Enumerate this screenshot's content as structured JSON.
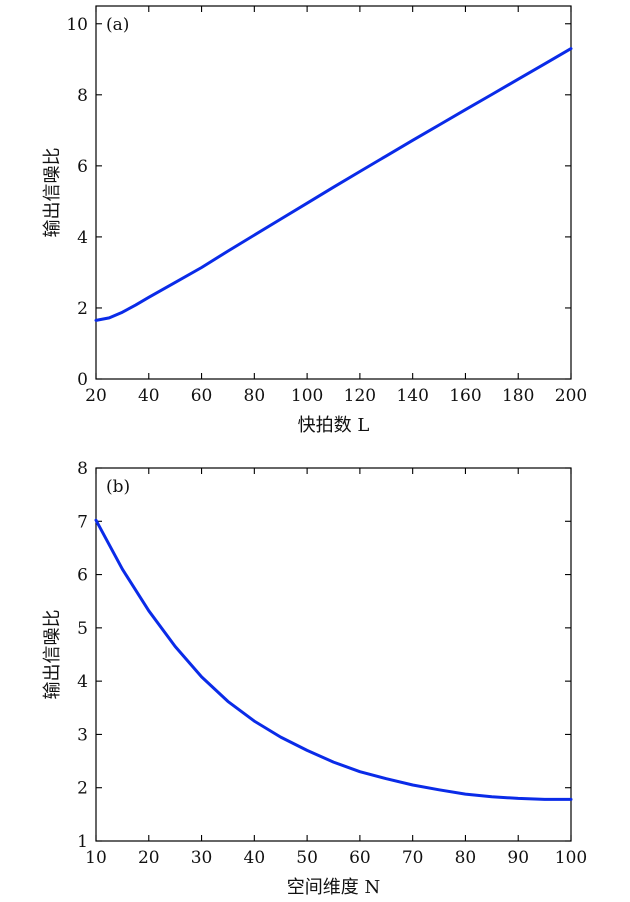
{
  "chart_data": [
    {
      "type": "line",
      "panel_label": "(a)",
      "xlabel": "快拍数 L",
      "ylabel": "输出信噪比",
      "xlim": [
        20,
        200
      ],
      "ylim": [
        0,
        10.5
      ],
      "xticks": [
        20,
        40,
        60,
        80,
        100,
        120,
        140,
        160,
        180,
        200
      ],
      "yticks": [
        0,
        2,
        4,
        6,
        8,
        10
      ],
      "grid": false,
      "color": "#0a2be8",
      "x": [
        20,
        25,
        30,
        35,
        40,
        50,
        60,
        70,
        80,
        90,
        100,
        110,
        120,
        130,
        140,
        150,
        160,
        170,
        180,
        190,
        200
      ],
      "y": [
        1.65,
        1.72,
        1.88,
        2.08,
        2.3,
        2.72,
        3.14,
        3.6,
        4.05,
        4.5,
        4.95,
        5.4,
        5.84,
        6.28,
        6.72,
        7.15,
        7.58,
        8.01,
        8.44,
        8.87,
        9.3
      ]
    },
    {
      "type": "line",
      "panel_label": "(b)",
      "xlabel": "空间维度 N",
      "ylabel": "输出信噪比",
      "xlim": [
        10,
        100
      ],
      "ylim": [
        1,
        8
      ],
      "xticks": [
        10,
        20,
        30,
        40,
        50,
        60,
        70,
        80,
        90,
        100
      ],
      "yticks": [
        1,
        2,
        3,
        4,
        5,
        6,
        7,
        8
      ],
      "grid": false,
      "color": "#0a2be8",
      "x": [
        10,
        15,
        20,
        25,
        30,
        35,
        40,
        45,
        50,
        55,
        60,
        65,
        70,
        75,
        80,
        85,
        90,
        95,
        100
      ],
      "y": [
        7.02,
        6.1,
        5.32,
        4.65,
        4.08,
        3.62,
        3.25,
        2.95,
        2.7,
        2.48,
        2.3,
        2.17,
        2.05,
        1.96,
        1.88,
        1.83,
        1.8,
        1.78,
        1.78
      ]
    }
  ]
}
